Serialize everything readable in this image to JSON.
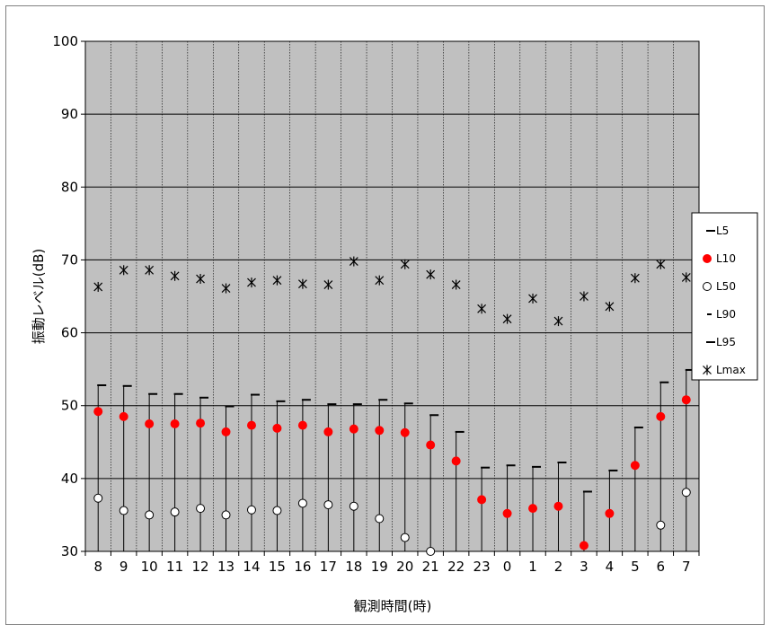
{
  "chart_data": {
    "type": "scatter",
    "title": "",
    "xlabel": "観測時間(時)",
    "ylabel": "振動レベル(dB)",
    "ylim": [
      30,
      100
    ],
    "yticks": [
      30,
      40,
      50,
      60,
      70,
      80,
      90,
      100
    ],
    "grid": true,
    "legend_position": "right",
    "plot_background": "#c0c0c0",
    "categories": [
      "8",
      "9",
      "10",
      "11",
      "12",
      "13",
      "14",
      "15",
      "16",
      "17",
      "18",
      "19",
      "20",
      "21",
      "22",
      "23",
      "0",
      "1",
      "2",
      "3",
      "4",
      "5",
      "6",
      "7"
    ],
    "series": [
      {
        "name": "L5",
        "marker": "dash",
        "color": "#000000",
        "values": [
          52.8,
          52.7,
          51.6,
          51.6,
          51.1,
          49.9,
          51.5,
          50.6,
          50.8,
          50.2,
          50.2,
          50.8,
          50.3,
          48.7,
          46.4,
          41.5,
          41.8,
          41.6,
          42.2,
          38.2,
          41.1,
          47.0,
          53.2,
          54.9
        ]
      },
      {
        "name": "L10",
        "marker": "dot-filled",
        "color": "#ff0000",
        "values": [
          49.2,
          48.5,
          47.5,
          47.5,
          47.6,
          46.4,
          47.3,
          46.9,
          47.3,
          46.4,
          46.8,
          46.6,
          46.3,
          44.6,
          42.4,
          37.1,
          35.2,
          35.9,
          36.2,
          30.8,
          35.2,
          41.8,
          48.5,
          50.8
        ]
      },
      {
        "name": "L50",
        "marker": "circle-open",
        "color": "#000000",
        "values": [
          37.3,
          35.6,
          35.0,
          35.4,
          35.9,
          35.0,
          35.7,
          35.6,
          36.6,
          36.4,
          36.2,
          34.5,
          31.9,
          30.0,
          null,
          null,
          null,
          null,
          null,
          null,
          null,
          null,
          33.6,
          38.1
        ]
      },
      {
        "name": "L90",
        "marker": "short-dash",
        "color": "#000000",
        "values": []
      },
      {
        "name": "L95",
        "marker": "dash",
        "color": "#000000",
        "values": []
      },
      {
        "name": "Lmax",
        "marker": "asterisk",
        "color": "#000000",
        "values": [
          66.3,
          68.6,
          68.6,
          67.8,
          67.4,
          66.1,
          66.9,
          67.2,
          66.7,
          66.6,
          69.8,
          67.2,
          69.4,
          68.0,
          66.6,
          63.3,
          61.9,
          64.7,
          61.6,
          65.0,
          63.6,
          67.5,
          69.4,
          67.6
        ]
      }
    ]
  }
}
